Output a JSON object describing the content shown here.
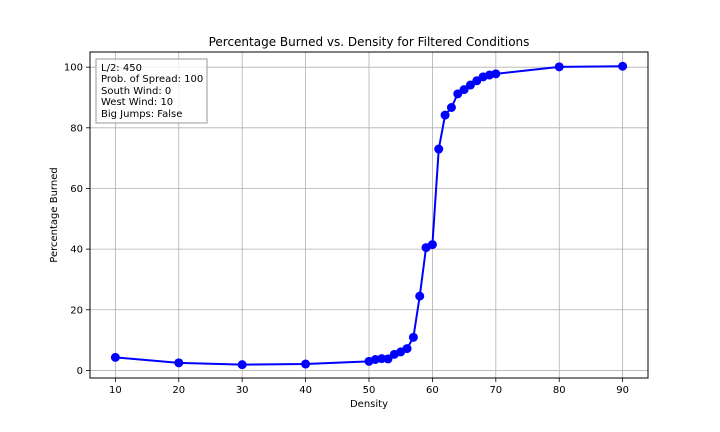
{
  "chart_data": {
    "type": "line",
    "title": "Percentage Burned vs. Density for Filtered Conditions",
    "xlabel": "Density",
    "ylabel": "Percentage Burned",
    "xlim": [
      6,
      94
    ],
    "ylim": [
      -2.5,
      105
    ],
    "xticks": [
      10,
      20,
      30,
      40,
      50,
      60,
      70,
      80,
      90
    ],
    "yticks": [
      0,
      20,
      40,
      60,
      80,
      100
    ],
    "grid": true,
    "series": [
      {
        "color": "#0000ff",
        "marker": "circle",
        "x": [
          10,
          20,
          30,
          40,
          50,
          51,
          52,
          53,
          54,
          55,
          56,
          57,
          58,
          59,
          60,
          61,
          62,
          63,
          64,
          65,
          66,
          67,
          68,
          69,
          70,
          80,
          90
        ],
        "y": [
          4.3,
          2.5,
          1.9,
          2.1,
          3.0,
          3.6,
          3.9,
          3.8,
          5.3,
          6.1,
          7.2,
          10.9,
          24.5,
          40.5,
          41.5,
          73.0,
          84.2,
          86.7,
          91.2,
          92.6,
          94.1,
          95.5,
          96.8,
          97.4,
          97.8,
          100.1,
          100.3
        ]
      }
    ],
    "annotation": {
      "lines": [
        "L/2: 450",
        "Prob. of Spread: 100",
        "South Wind: 0",
        "West Wind: 10",
        "Big Jumps: False"
      ]
    }
  }
}
